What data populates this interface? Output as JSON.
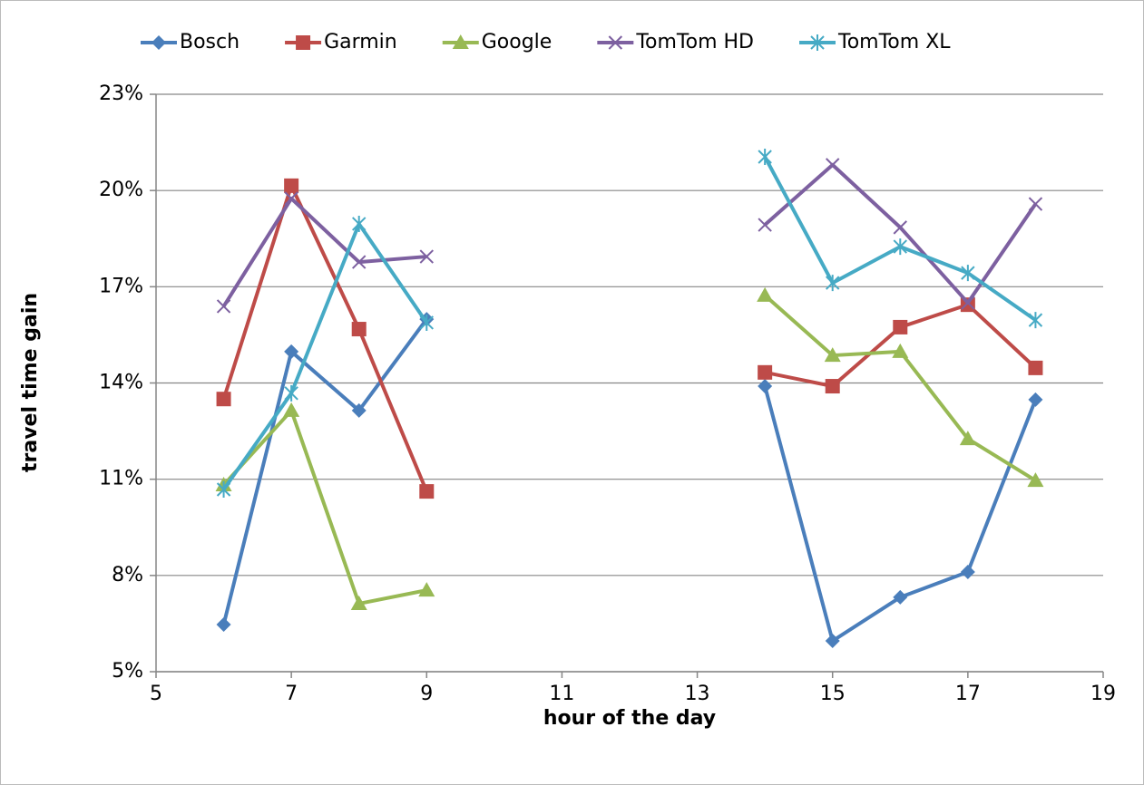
{
  "chart_data": {
    "type": "line",
    "x_label": "hour of the day",
    "y_label": "travel time gain",
    "x": [
      6,
      7,
      8,
      9,
      10,
      11,
      12,
      13,
      14,
      15,
      16,
      17,
      18
    ],
    "series": [
      {
        "name": "Bosch",
        "color": "#4a7ebb",
        "marker": "diamond",
        "values": [
          6.47,
          14.98,
          13.14,
          15.99,
          null,
          null,
          null,
          null,
          13.9,
          5.96,
          7.32,
          8.11,
          13.48
        ]
      },
      {
        "name": "Garmin",
        "color": "#be4b48",
        "marker": "square",
        "values": [
          13.5,
          20.15,
          15.68,
          10.62,
          null,
          null,
          null,
          null,
          14.33,
          13.9,
          15.74,
          16.44,
          14.47
        ]
      },
      {
        "name": "Google",
        "color": "#98b954",
        "marker": "triangle",
        "values": [
          10.82,
          13.14,
          7.12,
          7.54,
          null,
          null,
          null,
          null,
          16.73,
          14.86,
          14.98,
          12.26,
          10.96
        ]
      },
      {
        "name": "TomTom HD",
        "color": "#7d60a0",
        "marker": "x",
        "values": [
          16.39,
          19.75,
          17.77,
          17.94,
          null,
          null,
          null,
          null,
          18.93,
          20.8,
          18.85,
          16.5,
          19.58
        ]
      },
      {
        "name": "TomTom XL",
        "color": "#46aac5",
        "marker": "star",
        "values": [
          10.68,
          13.68,
          18.96,
          15.88,
          null,
          null,
          null,
          null,
          21.05,
          17.12,
          18.25,
          17.43,
          15.96
        ]
      }
    ],
    "xlim": [
      5,
      19
    ],
    "xticks": [
      5,
      7,
      9,
      11,
      13,
      15,
      17,
      19
    ],
    "ylim": [
      5,
      23
    ],
    "yticks": [
      {
        "value": 5,
        "label": "5%"
      },
      {
        "value": 8,
        "label": "8%"
      },
      {
        "value": 11,
        "label": "11%"
      },
      {
        "value": 14,
        "label": "14%"
      },
      {
        "value": 17,
        "label": "17%"
      },
      {
        "value": 20,
        "label": "20%"
      },
      {
        "value": 23,
        "label": "23%"
      }
    ],
    "grid": true,
    "legend": "top"
  }
}
